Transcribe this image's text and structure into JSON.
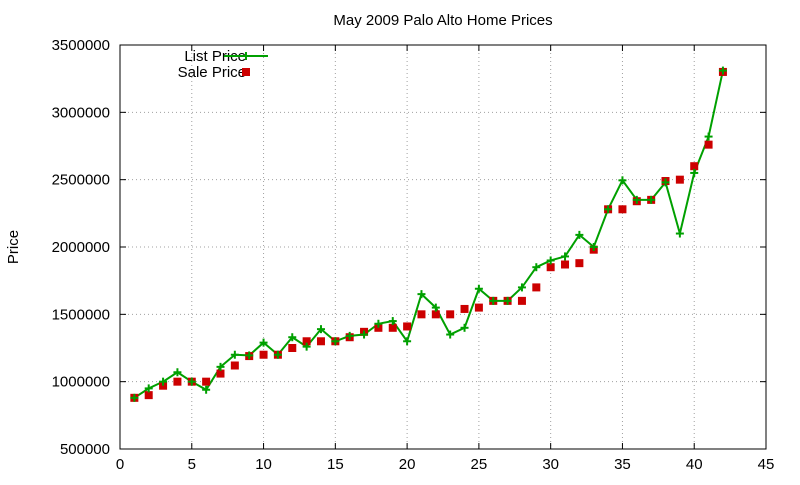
{
  "chart_data": {
    "type": "line",
    "title": "May 2009 Palo Alto Home Prices",
    "xlabel": "",
    "ylabel": "Price",
    "xlim": [
      0,
      45
    ],
    "ylim": [
      500000,
      3500000
    ],
    "xticks": [
      0,
      5,
      10,
      15,
      20,
      25,
      30,
      35,
      40,
      45
    ],
    "yticks": [
      500000,
      1000000,
      1500000,
      2000000,
      2500000,
      3000000,
      3500000
    ],
    "grid": true,
    "legend": "top-left",
    "series": [
      {
        "name": "List Price",
        "style": "line-plus",
        "color": "#00a000",
        "x": [
          1,
          2,
          3,
          4,
          5,
          6,
          7,
          8,
          9,
          10,
          11,
          12,
          13,
          14,
          15,
          16,
          17,
          18,
          19,
          20,
          21,
          22,
          23,
          24,
          25,
          26,
          27,
          28,
          29,
          30,
          31,
          32,
          33,
          34,
          35,
          36,
          37,
          38,
          39,
          40,
          41,
          42
        ],
        "values": [
          880000,
          950000,
          1000000,
          1070000,
          1000000,
          940000,
          1110000,
          1200000,
          1195000,
          1290000,
          1200000,
          1330000,
          1260000,
          1390000,
          1300000,
          1340000,
          1350000,
          1430000,
          1450000,
          1300000,
          1650000,
          1550000,
          1350000,
          1400000,
          1690000,
          1600000,
          1600000,
          1700000,
          1850000,
          1900000,
          1930000,
          2090000,
          2000000,
          2280000,
          2495000,
          2350000,
          2350000,
          2480000,
          2100000,
          2550000,
          2820000,
          3310000
        ]
      },
      {
        "name": "Sale Price",
        "style": "square",
        "color": "#cc0000",
        "x": [
          1,
          2,
          3,
          4,
          5,
          6,
          7,
          8,
          9,
          10,
          11,
          12,
          13,
          14,
          15,
          16,
          17,
          18,
          19,
          20,
          21,
          22,
          23,
          24,
          25,
          26,
          27,
          28,
          29,
          30,
          31,
          32,
          33,
          34,
          35,
          36,
          37,
          38,
          39,
          40,
          41,
          42
        ],
        "values": [
          880000,
          900000,
          970000,
          1000000,
          1000000,
          1000000,
          1060000,
          1120000,
          1190000,
          1200000,
          1200000,
          1250000,
          1300000,
          1300000,
          1300000,
          1330000,
          1370000,
          1400000,
          1400000,
          1410000,
          1500000,
          1500000,
          1500000,
          1540000,
          1550000,
          1600000,
          1600000,
          1600000,
          1700000,
          1850000,
          1870000,
          1880000,
          1980000,
          2280000,
          2280000,
          2340000,
          2350000,
          2490000,
          2500000,
          2600000,
          2760000,
          3300000
        ]
      }
    ]
  }
}
